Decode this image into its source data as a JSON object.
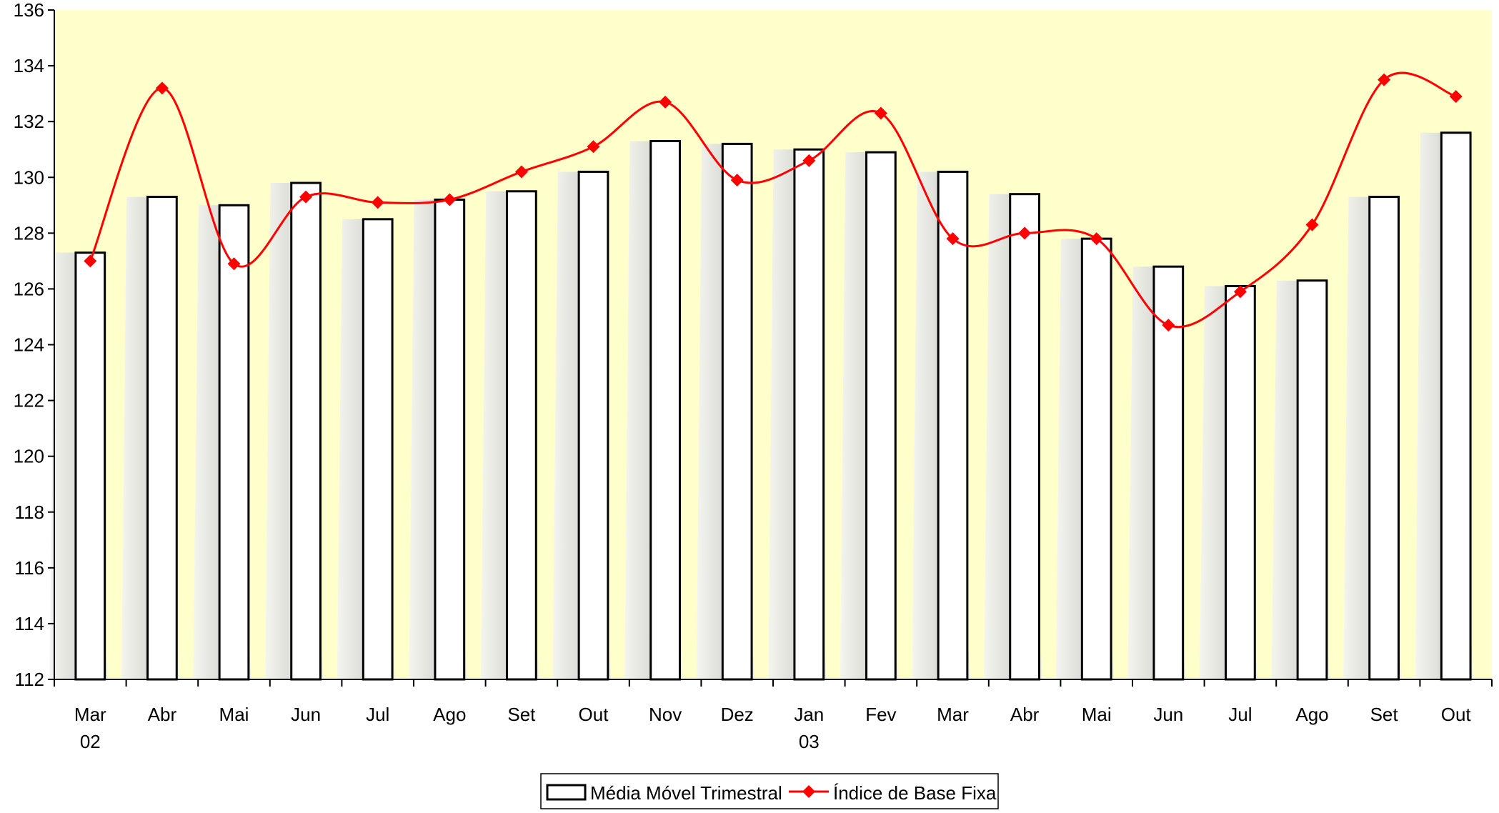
{
  "chart_data": {
    "type": "bar",
    "title": "",
    "xlabel": "",
    "ylabel": "",
    "ylim": [
      112,
      136
    ],
    "ytick_step": 2,
    "grid": false,
    "plot_background": "#ffffcc",
    "categories": [
      "Mar",
      "Abr",
      "Mai",
      "Jun",
      "Jul",
      "Ago",
      "Set",
      "Out",
      "Nov",
      "Dez",
      "Jan",
      "Fev",
      "Mar",
      "Abr",
      "Mai",
      "Jun",
      "Jul",
      "Ago",
      "Set",
      "Out"
    ],
    "category_sublabels": [
      "02",
      "",
      "",
      "",
      "",
      "",
      "",
      "",
      "",
      "",
      "03",
      "",
      "",
      "",
      "",
      "",
      "",
      "",
      "",
      ""
    ],
    "series": [
      {
        "name": "Média Móvel Trimestral",
        "type": "bar",
        "color": "#ffffff",
        "edge_color": "#000000",
        "shadow_color": "#d9d9d9",
        "values": [
          127.3,
          129.3,
          129.0,
          129.8,
          128.5,
          129.2,
          129.5,
          130.2,
          131.3,
          131.2,
          131.0,
          130.9,
          130.2,
          129.4,
          127.8,
          126.8,
          126.1,
          126.3,
          129.3,
          131.6
        ]
      },
      {
        "name": "Índice de Base Fixa",
        "type": "line",
        "smooth": true,
        "marker": "diamond",
        "color": "#ff0000",
        "values": [
          127.0,
          133.2,
          126.9,
          129.3,
          129.1,
          129.2,
          130.2,
          131.1,
          132.7,
          129.9,
          130.6,
          132.3,
          127.8,
          128.0,
          127.8,
          124.7,
          125.9,
          128.3,
          133.5,
          132.9
        ]
      }
    ],
    "legend_position": "bottom-center"
  }
}
